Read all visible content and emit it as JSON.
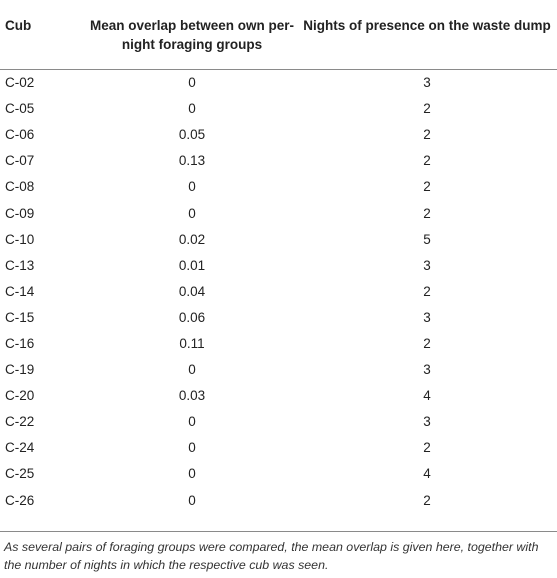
{
  "table": {
    "headers": [
      "Cub",
      "Mean overlap between own per-night foraging groups",
      "Nights of presence on the waste dump"
    ],
    "rows": [
      [
        "C-02",
        "0",
        "3"
      ],
      [
        "C-05",
        "0",
        "2"
      ],
      [
        "C-06",
        "0.05",
        "2"
      ],
      [
        "C-07",
        "0.13",
        "2"
      ],
      [
        "C-08",
        "0",
        "2"
      ],
      [
        "C-09",
        "0",
        "2"
      ],
      [
        "C-10",
        "0.02",
        "5"
      ],
      [
        "C-13",
        "0.01",
        "3"
      ],
      [
        "C-14",
        "0.04",
        "2"
      ],
      [
        "C-15",
        "0.06",
        "3"
      ],
      [
        "C-16",
        "0.11",
        "2"
      ],
      [
        "C-19",
        "0",
        "3"
      ],
      [
        "C-20",
        "0.03",
        "4"
      ],
      [
        "C-22",
        "0",
        "3"
      ],
      [
        "C-24",
        "0",
        "2"
      ],
      [
        "C-25",
        "0",
        "4"
      ],
      [
        "C-26",
        "0",
        "2"
      ]
    ]
  },
  "footnote": "As several pairs of foraging groups were compared, the mean overlap is given here, together with the number of nights in which the respective cub was seen."
}
